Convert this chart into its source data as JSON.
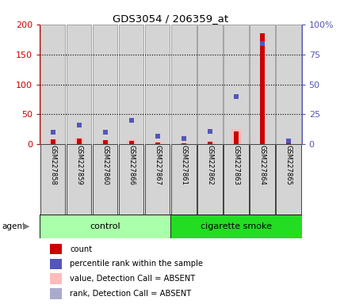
{
  "title": "GDS3054 / 206359_at",
  "samples": [
    "GSM227858",
    "GSM227859",
    "GSM227860",
    "GSM227866",
    "GSM227867",
    "GSM227861",
    "GSM227862",
    "GSM227863",
    "GSM227864",
    "GSM227865"
  ],
  "n_control": 5,
  "n_smoke": 5,
  "count_values": [
    8,
    10,
    7,
    6,
    3,
    2,
    5,
    22,
    185,
    4
  ],
  "rank_values_pct": [
    10,
    16,
    10,
    20,
    7,
    5,
    11,
    40,
    84,
    3
  ],
  "absent_value_values": [
    8,
    11,
    7,
    8,
    4,
    3,
    5,
    25,
    0,
    0
  ],
  "absent_rank_values_pct": [
    0,
    0,
    0,
    0,
    0,
    0,
    0,
    0,
    0,
    0
  ],
  "ylim_left": [
    0,
    200
  ],
  "ylim_right": [
    0,
    100
  ],
  "yticks_left": [
    0,
    50,
    100,
    150,
    200
  ],
  "ytick_labels_left": [
    "0",
    "50",
    "100",
    "150",
    "200"
  ],
  "yticks_right": [
    0,
    25,
    50,
    75,
    100
  ],
  "ytick_labels_right": [
    "0",
    "25",
    "50",
    "75",
    "100%"
  ],
  "count_color": "#cc0000",
  "rank_color": "#5555bb",
  "absent_value_color": "#ffbbbb",
  "absent_rank_color": "#aaaacc",
  "control_color": "#aaffaa",
  "smoke_color": "#22dd22",
  "bar_bg_color": "#d4d4d4",
  "bar_outline_color": "#888888",
  "white_bg": "#ffffff"
}
